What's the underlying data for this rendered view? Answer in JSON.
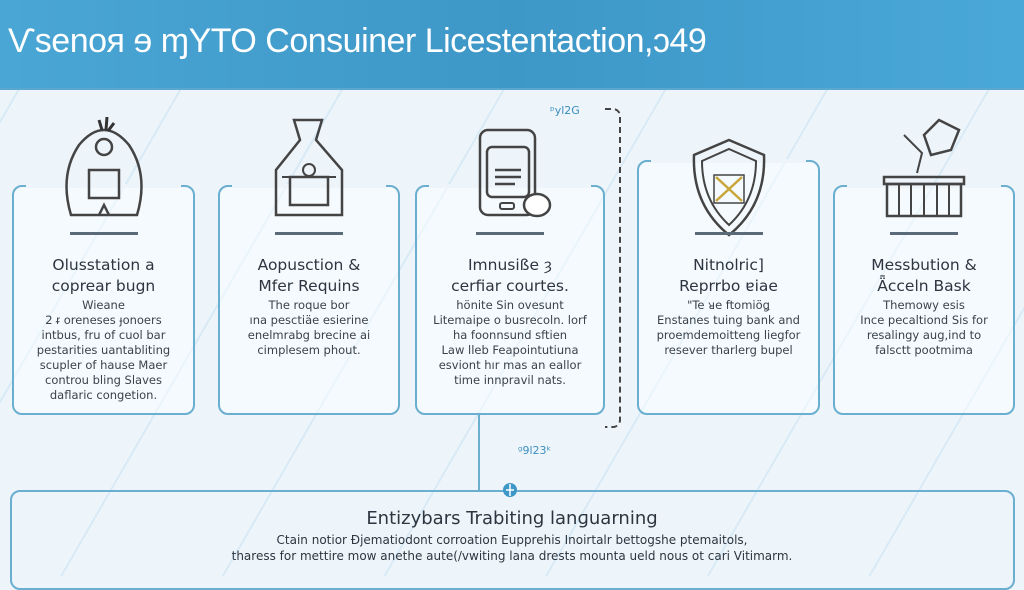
{
  "header": {
    "title": "Ѵsenoя ɘ ɱYTO Consuiner Licestentaction,ɔ49"
  },
  "cards": [
    {
      "icon": "person-globe-icon",
      "title": "Olusstation a",
      "title2": "coprear bugn",
      "body": [
        "Wieane",
        "2 ᵲ oreneses ɟonoers",
        "intbus, fru of cuol bar",
        "pestarities uantabliting",
        "scupler of hause Maer",
        "controu bling Slaves",
        "daflaric congetion."
      ]
    },
    {
      "icon": "money-bag-icon",
      "title": "Aopusction &",
      "title2": "Mfer Requins",
      "body": [
        "The roque bor",
        "ına pesctiäe esierine",
        "enelmrabg brecine ai",
        "cimplesem phout."
      ]
    },
    {
      "icon": "document-tablet-icon",
      "title": "Imnusiße ȝ",
      "title2": "cerfiar courtes.",
      "body": [
        "hönite Sin ovesunt",
        "Litemaipe o busrecoln. lorf",
        "ha foonnsund sftien",
        "Law lleb Feapointutiuna",
        "esviont hır mas an eallor",
        "time innpravil nats."
      ]
    },
    {
      "icon": "shield-icon",
      "title": "Nitnolric]",
      "title2": "Reprrbo ɐiae",
      "body": [
        "\"Te ᴚe ftomiöǥ",
        "Enstanes tuing bank and",
        "proemdemoitteng liegfor",
        "resever tharlerg bupel"
      ]
    },
    {
      "icon": "ballot-box-icon",
      "title": "Messbution &",
      "title2": "Ǟcceln Bask",
      "body": [
        "Themowy esis",
        "Ince pecaltiond Sis for",
        "resalingy aug,ind to",
        "falsctt pootmima"
      ]
    }
  ],
  "labels": {
    "top": "ᵖyl2G",
    "mid": "ᵍ9l23ᵏ"
  },
  "bottom": {
    "icon": "globe-icon",
    "title": "Entizybars Trabiting lanɡuarning",
    "lines": [
      "Ctain notior Ɖjematiodont corroation Eupprehis Inoirtalr bettogshe ptemaitols,",
      "tharess for mettire mow anethe aute(/vwiting lana drests mounta ueld nous ot cari Vitimarm."
    ]
  },
  "colors": {
    "header": "#3d97c7",
    "border": "#6aaed0",
    "text": "#2d3540"
  }
}
